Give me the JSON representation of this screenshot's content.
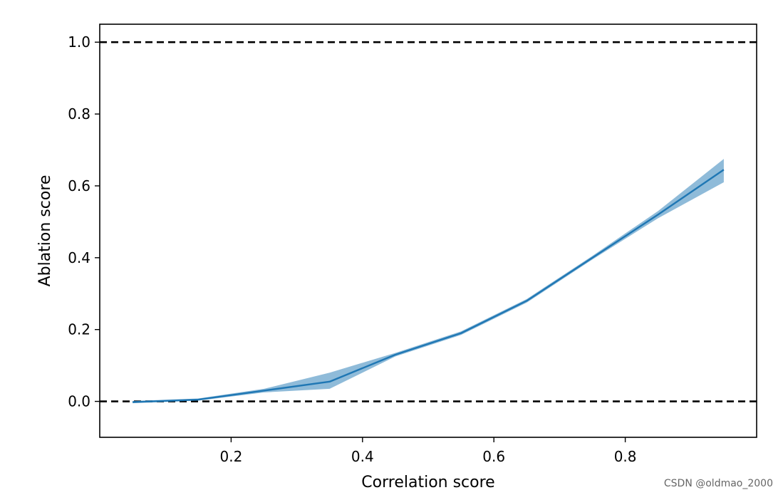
{
  "chart_data": {
    "type": "line",
    "title": "",
    "xlabel": "Correlation score",
    "ylabel": "Ablation score",
    "xlim": [
      0.0,
      1.0
    ],
    "ylim": [
      -0.1,
      1.05
    ],
    "x_ticks": [
      0.2,
      0.4,
      0.6,
      0.8
    ],
    "x_tick_labels": [
      "0.2",
      "0.4",
      "0.6",
      "0.8"
    ],
    "y_ticks": [
      0.0,
      0.2,
      0.4,
      0.6,
      0.8,
      1.0
    ],
    "y_tick_labels": [
      "0.0",
      "0.2",
      "0.4",
      "0.6",
      "0.8",
      "1.0"
    ],
    "grid": false,
    "series": [
      {
        "x": [
          0.05,
          0.15,
          0.25,
          0.35,
          0.45,
          0.55,
          0.65,
          0.75,
          0.85,
          0.95
        ],
        "y": [
          -0.002,
          0.005,
          0.03,
          0.055,
          0.13,
          0.19,
          0.28,
          0.4,
          0.52,
          0.645
        ],
        "lower": [
          -0.005,
          0.002,
          0.025,
          0.035,
          0.125,
          0.185,
          0.275,
          0.395,
          0.51,
          0.61
        ],
        "upper": [
          0.001,
          0.008,
          0.035,
          0.08,
          0.135,
          0.195,
          0.285,
          0.405,
          0.53,
          0.675
        ],
        "color": "#1f77b4",
        "band_color": "#1f77b4"
      }
    ],
    "reference_lines": [
      {
        "y": 1.0,
        "style": "dashed",
        "color": "#000000"
      },
      {
        "y": 0.0,
        "style": "dashed",
        "color": "#000000"
      }
    ]
  },
  "watermark": "CSDN @oldmao_2000"
}
